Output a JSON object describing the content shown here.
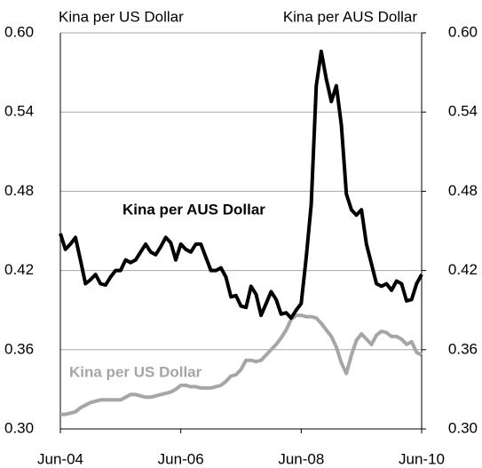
{
  "chart_data": {
    "type": "line",
    "y_label": "Kina per US Dollar",
    "y2_label": "Kina per AUS Dollar",
    "categories": [
      "Jun-04",
      null,
      null,
      null,
      null,
      null,
      null,
      null,
      null,
      null,
      null,
      null,
      null,
      null,
      null,
      null,
      null,
      null,
      null,
      null,
      null,
      null,
      null,
      null,
      "Jun-06",
      null,
      null,
      null,
      null,
      null,
      null,
      null,
      null,
      null,
      null,
      null,
      null,
      null,
      null,
      null,
      null,
      null,
      null,
      null,
      null,
      null,
      null,
      null,
      "Jun-08",
      null,
      null,
      null,
      null,
      null,
      null,
      null,
      null,
      null,
      null,
      null,
      null,
      null,
      null,
      null,
      null,
      null,
      null,
      null,
      null,
      null,
      null,
      null,
      "Jun-10"
    ],
    "series": [
      {
        "name": "Kina per AUS Dollar",
        "color": "#000000",
        "values": [
          0.448,
          0.436,
          0.44,
          0.445,
          0.428,
          0.41,
          0.413,
          0.417,
          0.41,
          0.409,
          0.415,
          0.42,
          0.42,
          0.428,
          0.426,
          0.428,
          0.434,
          0.44,
          0.434,
          0.432,
          0.438,
          0.445,
          0.441,
          0.428,
          0.44,
          0.436,
          0.434,
          0.44,
          0.44,
          0.43,
          0.42,
          0.42,
          0.422,
          0.415,
          0.4,
          0.401,
          0.393,
          0.392,
          0.408,
          0.402,
          0.386,
          0.395,
          0.404,
          0.398,
          0.387,
          0.388,
          0.384,
          0.39,
          0.395,
          0.43,
          0.47,
          0.56,
          0.586,
          0.565,
          0.548,
          0.56,
          0.53,
          0.478,
          0.466,
          0.462,
          0.466,
          0.44,
          0.425,
          0.41,
          0.408,
          0.41,
          0.405,
          0.412,
          0.41,
          0.397,
          0.398,
          0.41,
          0.417
        ]
      },
      {
        "name": "Kina per US Dollar",
        "color": "#a6a6a6",
        "values": [
          0.311,
          0.311,
          0.312,
          0.313,
          0.316,
          0.318,
          0.32,
          0.321,
          0.322,
          0.322,
          0.322,
          0.322,
          0.322,
          0.324,
          0.326,
          0.326,
          0.325,
          0.324,
          0.324,
          0.325,
          0.326,
          0.327,
          0.328,
          0.33,
          0.333,
          0.333,
          0.332,
          0.332,
          0.331,
          0.331,
          0.331,
          0.332,
          0.333,
          0.336,
          0.34,
          0.341,
          0.345,
          0.352,
          0.352,
          0.351,
          0.352,
          0.356,
          0.36,
          0.364,
          0.369,
          0.375,
          0.383,
          0.386,
          0.386,
          0.385,
          0.385,
          0.384,
          0.38,
          0.375,
          0.37,
          0.362,
          0.35,
          0.342,
          0.356,
          0.367,
          0.372,
          0.368,
          0.364,
          0.371,
          0.374,
          0.373,
          0.37,
          0.37,
          0.368,
          0.364,
          0.366,
          0.358,
          0.356
        ]
      }
    ],
    "ylim": [
      0.3,
      0.6
    ],
    "yticks": [
      {
        "value": 0.3,
        "label": "0.30"
      },
      0.36,
      0.42,
      0.48,
      0.54,
      {
        "value": 0.6,
        "label": "0.60"
      }
    ],
    "y2lim": [
      0.3,
      0.6
    ],
    "y2ticks": [
      {
        "value": 0.3,
        "label": "0.30"
      },
      0.36,
      0.42,
      0.48,
      0.54,
      {
        "value": 0.6,
        "label": "0.60"
      }
    ],
    "grid": true
  }
}
